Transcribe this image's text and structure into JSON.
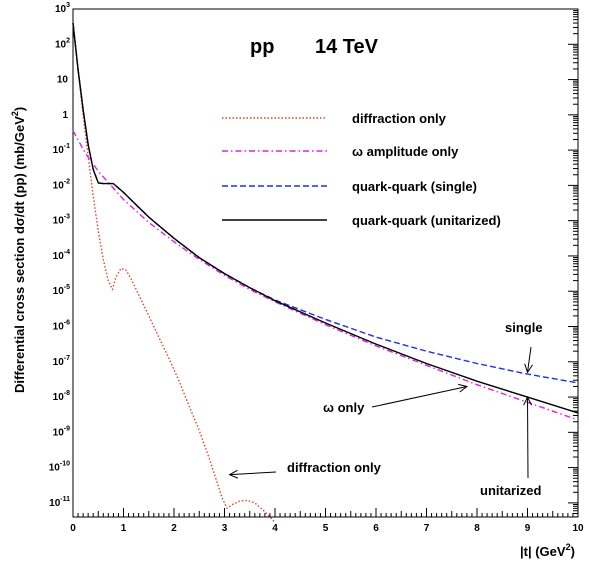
{
  "chart_data": {
    "type": "line",
    "title_left": "pp",
    "title_right": "14 TeV",
    "xlabel": "|t| (GeV",
    "xlabel_sup": "2",
    "xlabel_close": ")",
    "ylabel": "Differential cross section dσ/dt (pp) (mb/GeV",
    "ylabel_sup": "2",
    "ylabel_close": ")",
    "xlim": [
      0,
      10
    ],
    "ylim_log10": [
      -11.4,
      3.0
    ],
    "y_scale": "log",
    "grid": false,
    "legend_position": "upper-right",
    "x_ticks": [
      "0",
      "1",
      "2",
      "3",
      "4",
      "5",
      "6",
      "7",
      "8",
      "9",
      "10"
    ],
    "y_ticks": [
      {
        "base": "10",
        "exp": "3"
      },
      {
        "base": "10",
        "exp": "2"
      },
      {
        "base": "10",
        "exp": ""
      },
      {
        "base": "1",
        "exp": ""
      },
      {
        "base": "10",
        "exp": "-1"
      },
      {
        "base": "10",
        "exp": "-2"
      },
      {
        "base": "10",
        "exp": "-3"
      },
      {
        "base": "10",
        "exp": "-4"
      },
      {
        "base": "10",
        "exp": "-5"
      },
      {
        "base": "10",
        "exp": "-6"
      },
      {
        "base": "10",
        "exp": "-7"
      },
      {
        "base": "10",
        "exp": "-8"
      },
      {
        "base": "10",
        "exp": "-9"
      },
      {
        "base": "10",
        "exp": "-10"
      },
      {
        "base": "10",
        "exp": "-11"
      }
    ],
    "series": [
      {
        "name": "diffraction only",
        "color": "#e8402a",
        "dash": "dotted",
        "x": [
          0,
          0.1,
          0.2,
          0.3,
          0.4,
          0.5,
          0.6,
          0.7,
          0.78,
          0.85,
          0.95,
          1.05,
          1.15,
          1.3,
          1.5,
          1.7,
          1.9,
          2.1,
          2.3,
          2.5,
          2.7,
          2.85,
          2.95,
          3.05,
          3.15,
          3.3,
          3.45,
          3.6,
          3.8,
          4.0
        ],
        "y_log10": [
          2.6,
          1.3,
          0.0,
          -1.2,
          -2.3,
          -3.3,
          -4.1,
          -4.7,
          -4.95,
          -4.6,
          -4.35,
          -4.4,
          -4.65,
          -5.1,
          -5.7,
          -6.3,
          -6.9,
          -7.55,
          -8.25,
          -8.95,
          -9.75,
          -10.4,
          -10.85,
          -11.15,
          -11.05,
          -10.95,
          -10.93,
          -11.0,
          -11.25,
          -11.55
        ]
      },
      {
        "name": "ω amplitude only",
        "color": "#e020e0",
        "dash": "dashdot",
        "x": [
          0,
          0.25,
          0.5,
          0.75,
          1.0,
          1.5,
          2.0,
          2.5,
          3.0,
          3.5,
          4.0,
          5.0,
          6.0,
          7.0,
          8.0,
          9.0,
          10.0
        ],
        "y_log10": [
          -0.45,
          -1.1,
          -1.6,
          -2.0,
          -2.4,
          -3.05,
          -3.6,
          -4.1,
          -4.55,
          -4.95,
          -5.3,
          -5.95,
          -6.55,
          -7.1,
          -7.65,
          -8.15,
          -8.65
        ]
      },
      {
        "name": "quark-quark (single)",
        "color": "#2030e0",
        "dash": "dashed",
        "x": [
          0,
          0.1,
          0.2,
          0.3,
          0.4,
          0.5,
          0.6,
          0.8,
          1.0,
          1.25,
          1.5,
          2.0,
          2.5,
          3.0,
          3.5,
          4.0,
          5.0,
          6.0,
          7.0,
          8.0,
          9.0,
          10.0
        ],
        "y_log10": [
          2.6,
          1.3,
          0.15,
          -0.85,
          -1.55,
          -1.93,
          -1.95,
          -1.95,
          -2.2,
          -2.55,
          -2.9,
          -3.5,
          -4.05,
          -4.5,
          -4.9,
          -5.25,
          -5.8,
          -6.3,
          -6.7,
          -7.05,
          -7.35,
          -7.6
        ]
      },
      {
        "name": "quark-quark (unitarized)",
        "color": "#000000",
        "dash": "solid",
        "x": [
          0,
          0.1,
          0.2,
          0.3,
          0.4,
          0.5,
          0.6,
          0.8,
          1.0,
          1.25,
          1.5,
          2.0,
          2.5,
          3.0,
          3.5,
          4.0,
          5.0,
          6.0,
          7.0,
          8.0,
          9.0,
          10.0
        ],
        "y_log10": [
          2.6,
          1.3,
          0.15,
          -0.85,
          -1.55,
          -1.93,
          -1.95,
          -1.95,
          -2.2,
          -2.55,
          -2.9,
          -3.5,
          -4.05,
          -4.5,
          -4.9,
          -5.27,
          -5.9,
          -6.5,
          -7.05,
          -7.55,
          -8.0,
          -8.45
        ]
      }
    ],
    "annotations": [
      {
        "text": "single",
        "arrow_to_x": 9.0,
        "arrow_to_y_log10": -7.3
      },
      {
        "text": "ω only",
        "arrow_to_x": 7.8,
        "arrow_to_y_log10": -7.7
      },
      {
        "text": "diffraction only",
        "arrow_to_x": 3.1,
        "arrow_to_y_log10": -10.2
      },
      {
        "text": "unitarized",
        "arrow_to_x": 9.0,
        "arrow_to_y_log10": -8.0
      }
    ]
  }
}
